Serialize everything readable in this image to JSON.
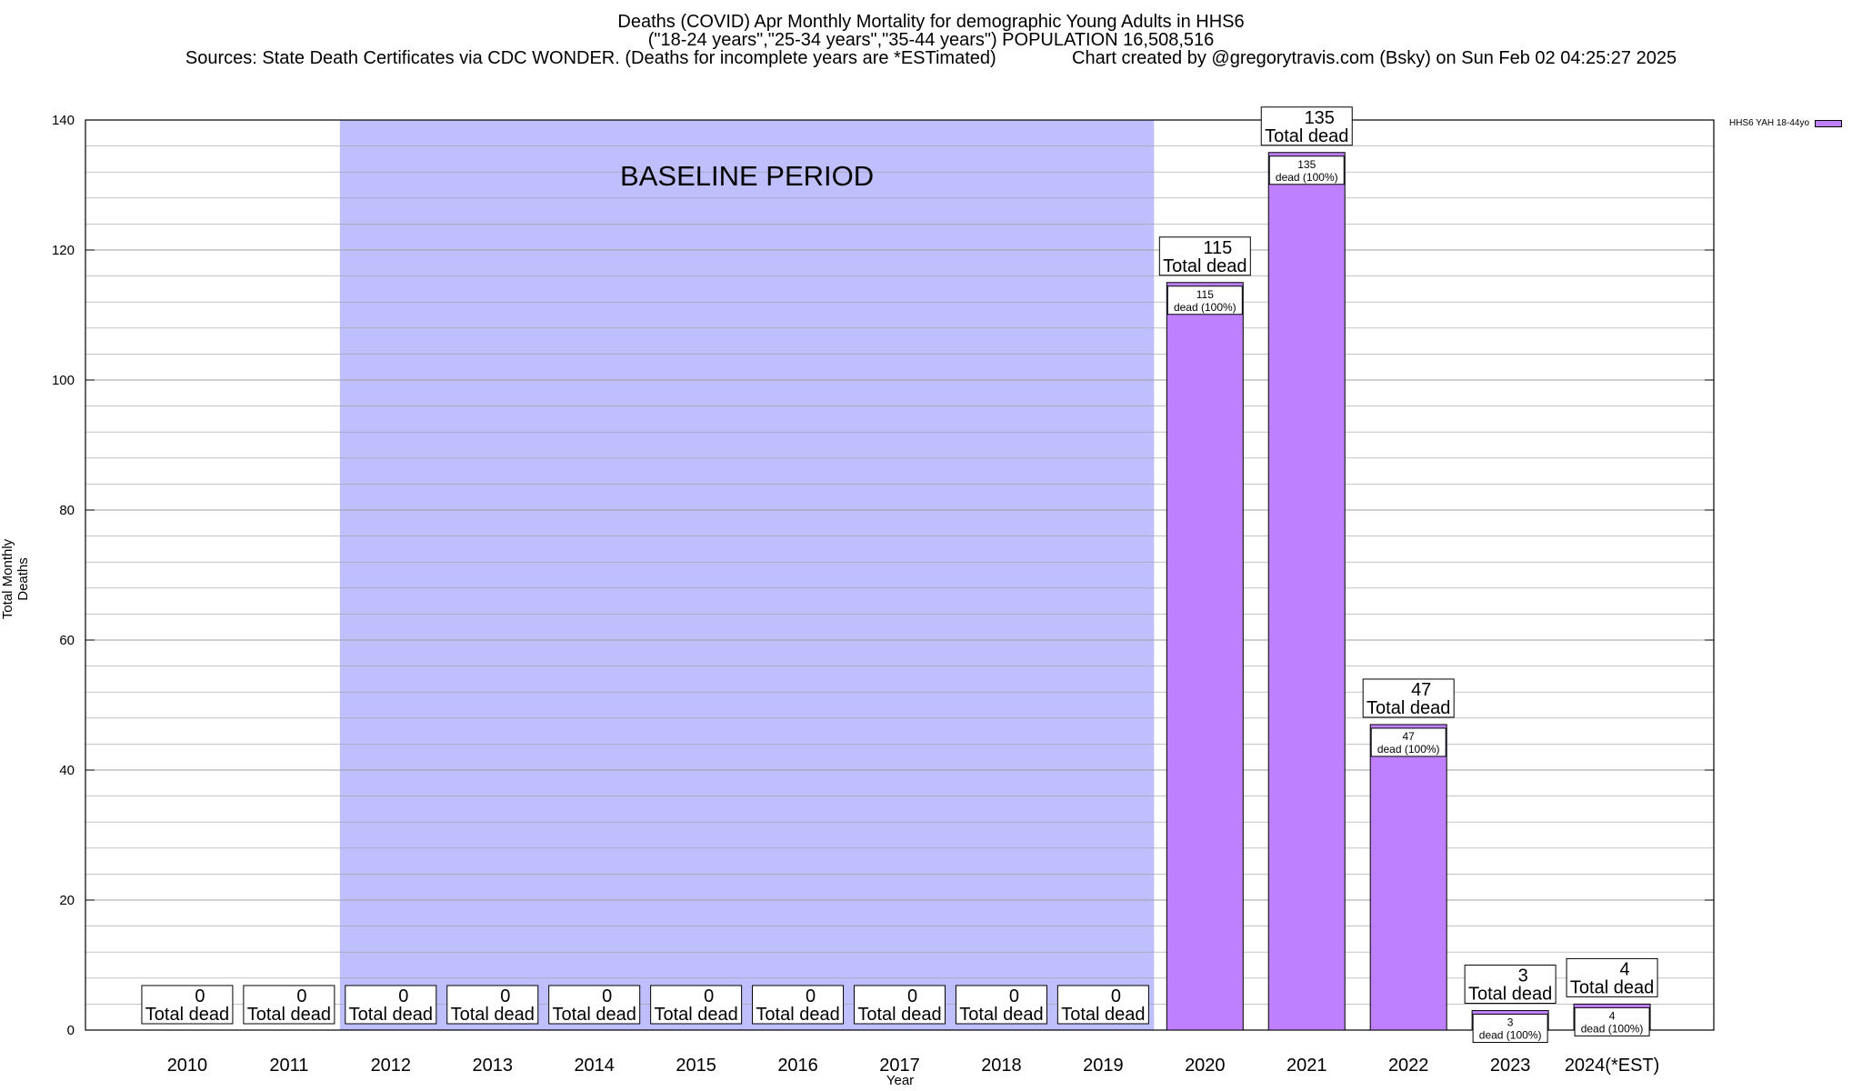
{
  "title": {
    "line1": "Deaths (COVID) Apr Monthly Mortality for demographic Young Adults in HHS6",
    "line2": "(\"18-24 years\",\"25-34 years\",\"35-44 years\") POPULATION 16,508,516",
    "line3": "Sources: State Death Certificates via CDC WONDER. (Deaths for incomplete years are *ESTimated)               Chart created by @gregorytravis.com (Bsky) on Sun Feb 02 04:25:27 2025"
  },
  "colors": {
    "bar": "#bf80ff",
    "baseline_shade": "#bfbffd",
    "grid": "#a0a0a0"
  },
  "chart_data": {
    "type": "bar",
    "categories": [
      "2010",
      "2011",
      "2012",
      "2013",
      "2014",
      "2015",
      "2016",
      "2017",
      "2018",
      "2019",
      "2020",
      "2021",
      "2022",
      "2023",
      "2024(*EST)"
    ],
    "series": [
      {
        "name": "HHS6 YAH 18-44yo",
        "values": [
          0,
          0,
          0,
          0,
          0,
          0,
          0,
          0,
          0,
          0,
          115,
          135,
          47,
          3,
          4
        ]
      }
    ],
    "total_label_suffix": "Total dead",
    "bar_label_suffix": "dead (100%)",
    "baseline_period": {
      "label": "BASELINE PERIOD",
      "from": "2012",
      "to": "2019"
    },
    "xlabel": "Year",
    "ylabel": "Total Monthly Deaths",
    "ylim": [
      0,
      140
    ],
    "yticks": [
      0,
      20,
      40,
      60,
      80,
      100,
      120,
      140
    ],
    "grid": true,
    "legend_position": "top-right"
  }
}
